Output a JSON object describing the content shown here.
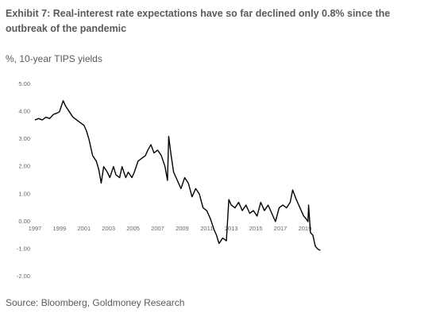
{
  "chart_data": {
    "type": "line",
    "title": "Exhibit 7: Real-interest rate expectations have so far declined only 0.8% since the outbreak of the pandemic",
    "subtitle": "%, 10-year TIPS yields",
    "source": "Source: Bloomberg, Goldmoney Research",
    "x": [
      1997.0,
      1997.3,
      1997.6,
      1997.9,
      1998.2,
      1998.5,
      1998.8,
      1999.0,
      1999.3,
      1999.5,
      1999.8,
      2000.1,
      2000.4,
      2000.7,
      2001.0,
      2001.2,
      2001.4,
      2001.7,
      2002.0,
      2002.2,
      2002.4,
      2002.6,
      2002.9,
      2003.1,
      2003.4,
      2003.6,
      2003.9,
      2004.1,
      2004.4,
      2004.6,
      2004.9,
      2005.1,
      2005.4,
      2005.7,
      2006.0,
      2006.2,
      2006.45,
      2006.7,
      2007.0,
      2007.3,
      2007.6,
      2007.8,
      2007.9,
      2008.1,
      2008.3,
      2008.6,
      2008.9,
      2009.2,
      2009.5,
      2009.8,
      2010.1,
      2010.4,
      2010.7,
      2011.0,
      2011.3,
      2011.6,
      2011.8,
      2012.0,
      2012.3,
      2012.6,
      2012.8,
      2013.0,
      2013.3,
      2013.6,
      2013.9,
      2014.2,
      2014.5,
      2014.8,
      2015.1,
      2015.4,
      2015.7,
      2016.0,
      2016.3,
      2016.6,
      2016.9,
      2017.2,
      2017.5,
      2017.8,
      2018.0,
      2018.3,
      2018.6,
      2018.9,
      2019.1,
      2019.25,
      2019.3,
      2019.45,
      2019.65,
      2019.85,
      2020.05,
      2020.25
    ],
    "values": [
      3.7,
      3.75,
      3.7,
      3.8,
      3.75,
      3.9,
      3.95,
      4.0,
      4.4,
      4.2,
      4.0,
      3.8,
      3.7,
      3.6,
      3.5,
      3.3,
      3.0,
      2.4,
      2.2,
      1.9,
      1.4,
      2.0,
      1.8,
      1.6,
      2.0,
      1.7,
      1.6,
      2.0,
      1.6,
      1.8,
      1.6,
      1.8,
      2.2,
      2.3,
      2.4,
      2.6,
      2.8,
      2.5,
      2.6,
      2.4,
      2.0,
      1.5,
      3.1,
      2.4,
      1.8,
      1.5,
      1.2,
      1.6,
      1.4,
      0.9,
      1.2,
      1.0,
      0.5,
      0.4,
      0.1,
      -0.3,
      -0.5,
      -0.8,
      -0.6,
      -0.7,
      0.8,
      0.6,
      0.5,
      0.7,
      0.4,
      0.6,
      0.3,
      0.4,
      0.2,
      0.7,
      0.4,
      0.6,
      0.3,
      0.0,
      0.5,
      0.6,
      0.5,
      0.7,
      1.15,
      0.8,
      0.5,
      0.2,
      0.1,
      0.0,
      0.6,
      -0.4,
      -0.5,
      -0.9,
      -1.0,
      -1.05
    ],
    "color": "#000000",
    "xlim": [
      1997,
      2020.3
    ],
    "xticks": [
      1997,
      1999,
      2001,
      2003,
      2005,
      2007,
      2009,
      2011,
      2013,
      2015,
      2017,
      2019
    ],
    "ylim": [
      -2,
      5
    ],
    "yticks": [
      {
        "value": 5,
        "label": "5.00"
      },
      {
        "value": 4,
        "label": "4.00"
      },
      {
        "value": 3,
        "label": "3.00"
      },
      {
        "value": 2,
        "label": "2.00"
      },
      {
        "value": 1,
        "label": "1.00"
      },
      {
        "value": 0,
        "label": "0.00"
      },
      {
        "value": -1,
        "label": "-1.00"
      },
      {
        "value": -2,
        "label": "-2.00"
      }
    ],
    "grid": false
  }
}
